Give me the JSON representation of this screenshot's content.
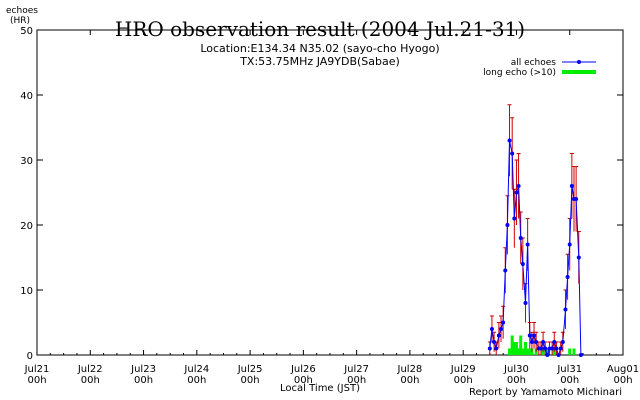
{
  "chart_data": {
    "type": "line",
    "title": "HRO observation result (2004 Jul.21-31)",
    "subtitle_lines": [
      "Location:E134.34 N35.02 (sayo-cho Hyogo)",
      "TX:53.75MHz JA9YDB(Sabae)"
    ],
    "ylabel": "echoes\n(HR)",
    "xlabel": "Local Time (JST)",
    "credit": "Report by Yamamoto Michinari",
    "ylim": [
      0,
      50
    ],
    "yticks": [
      0,
      10,
      20,
      30,
      40,
      50
    ],
    "xlim_days": [
      21,
      32
    ],
    "xticks": [
      {
        "day": 21,
        "label1": "Jul21",
        "label2": "00h"
      },
      {
        "day": 22,
        "label1": "Jul22",
        "label2": "00h"
      },
      {
        "day": 23,
        "label1": "Jul23",
        "label2": "00h"
      },
      {
        "day": 24,
        "label1": "Jul24",
        "label2": "00h"
      },
      {
        "day": 25,
        "label1": "Jul25",
        "label2": "00h"
      },
      {
        "day": 26,
        "label1": "Jul26",
        "label2": "00h"
      },
      {
        "day": 27,
        "label1": "Jul27",
        "label2": "00h"
      },
      {
        "day": 28,
        "label1": "Jul28",
        "label2": "00h"
      },
      {
        "day": 29,
        "label1": "Jul29",
        "label2": "00h"
      },
      {
        "day": 30,
        "label1": "Jul30",
        "label2": "00h"
      },
      {
        "day": 31,
        "label1": "Jul31",
        "label2": "00h"
      },
      {
        "day": 32,
        "label1": "Aug01",
        "label2": "00h"
      }
    ],
    "legend": {
      "placement": "top-right",
      "all_label": "all echoes",
      "long_label": "long echo (>10)"
    },
    "colors": {
      "all": "#0000ff",
      "errorbar": "#cc0000",
      "long": "#00ee00"
    },
    "series": [
      {
        "name": "all echoes",
        "x": [
          29.5,
          29.54,
          29.58,
          29.62,
          29.67,
          29.71,
          29.75,
          29.79,
          29.83,
          29.87,
          29.92,
          29.96,
          30.0,
          30.04,
          30.08,
          30.12,
          30.17,
          30.21,
          30.25,
          30.29,
          30.33,
          30.37,
          30.42,
          30.46,
          30.5,
          30.54,
          30.58,
          30.62,
          30.67,
          30.71,
          30.75,
          30.79,
          30.83,
          30.87,
          30.92,
          30.96,
          31.0,
          31.04,
          31.08,
          31.12,
          31.17,
          31.21
        ],
        "y": [
          1,
          4,
          2,
          1,
          3,
          4,
          5,
          13,
          20,
          33,
          31,
          21,
          25,
          26,
          18,
          14,
          8,
          17,
          3,
          2,
          3,
          2,
          1,
          1,
          2,
          1,
          0,
          1,
          1,
          2,
          1,
          0,
          1,
          2,
          7,
          12,
          17,
          26,
          24,
          24,
          15,
          0
        ],
        "err": [
          1,
          2,
          1.5,
          1,
          2,
          2,
          2.5,
          3.5,
          4.5,
          5.5,
          5.5,
          4.5,
          5,
          5,
          4,
          4,
          3,
          4,
          2,
          1.5,
          2,
          1.5,
          1,
          1,
          1.5,
          1,
          0,
          1,
          1,
          1.5,
          1,
          0,
          1,
          1.5,
          3,
          3.5,
          4,
          5,
          5,
          5,
          4,
          0
        ]
      },
      {
        "name": "long echo (>10)",
        "x": [
          29.83,
          29.87,
          29.92,
          29.96,
          30.0,
          30.04,
          30.08,
          30.12,
          30.17,
          30.21,
          30.25,
          30.29,
          30.33,
          30.37,
          30.42,
          30.46,
          30.5,
          30.54,
          30.58,
          30.62,
          30.67,
          30.71,
          30.75,
          30.79,
          30.83,
          30.87,
          30.92,
          30.96,
          31.0,
          31.04,
          31.08
        ],
        "y": [
          0,
          1,
          3,
          2,
          2,
          1,
          3,
          1,
          2,
          1,
          1,
          1,
          0,
          1,
          0,
          0,
          1,
          0,
          1,
          0,
          0,
          1,
          0,
          0,
          0,
          0,
          0,
          0,
          1,
          0,
          1
        ]
      }
    ]
  }
}
